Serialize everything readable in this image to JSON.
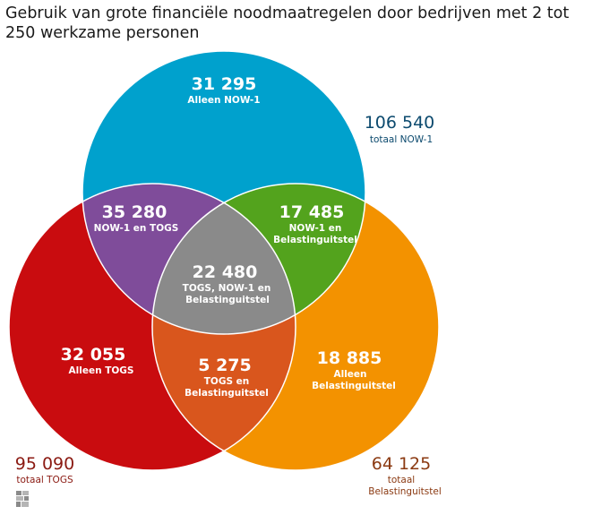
{
  "title": "Gebruik van grote financiële noodmaatregelen door bedrijven met 2 tot 250 werkzame personen",
  "colors": {
    "now": "#00a1cd",
    "togs": "#c90c0f",
    "belasting": "#f39200",
    "now_togs": "#7f4c9a",
    "now_belasting": "#53a31d",
    "togs_belasting": "#d9561d",
    "all": "#8a8a8a",
    "total_now": "#0c4a6e",
    "total_togs": "#8b1a12",
    "total_belasting": "#8b3a12"
  },
  "regions": {
    "now_only": {
      "value": "31 295",
      "label": "Alleen NOW-1"
    },
    "now_togs": {
      "value": "35 280",
      "label": "NOW-1 en TOGS"
    },
    "now_belasting": {
      "value": "17 485",
      "label1": "NOW-1 en",
      "label2": "Belastinguitstel"
    },
    "all": {
      "value": "22 480",
      "label1": "TOGS, NOW-1 en",
      "label2": "Belastinguitstel"
    },
    "togs_only": {
      "value": "32 055",
      "label": "Alleen TOGS"
    },
    "togs_belasting": {
      "value": "5 275",
      "label1": "TOGS en",
      "label2": "Belastinguitstel"
    },
    "belasting_only": {
      "value": "18 885",
      "label1": "Alleen",
      "label2": "Belastinguitstel"
    }
  },
  "totals": {
    "now": {
      "value": "106 540",
      "label": "totaal NOW-1"
    },
    "togs": {
      "value": "95 090",
      "label": "totaal TOGS"
    },
    "belasting": {
      "value": "64 125",
      "label1": "totaal",
      "label2": "Belastinguitstel"
    }
  },
  "logo": "cbs-logo"
}
